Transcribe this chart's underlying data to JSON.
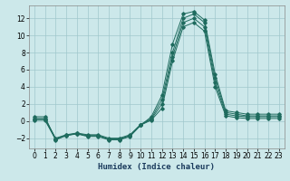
{
  "xlabel": "Humidex (Indice chaleur)",
  "ylabel": "",
  "xlim": [
    -0.5,
    23.5
  ],
  "ylim": [
    -3.2,
    13.5
  ],
  "yticks": [
    -2,
    0,
    2,
    4,
    6,
    8,
    10,
    12
  ],
  "xticks": [
    0,
    1,
    2,
    3,
    4,
    5,
    6,
    7,
    8,
    9,
    10,
    11,
    12,
    13,
    14,
    15,
    16,
    17,
    18,
    19,
    20,
    21,
    22,
    23
  ],
  "background_color": "#cce8ea",
  "grid_color": "#a0c8cc",
  "line_color": "#1e6b5e",
  "series": [
    {
      "x": [
        0,
        1,
        2,
        3,
        4,
        5,
        6,
        7,
        8,
        9,
        10,
        11,
        12,
        13,
        14,
        15,
        16,
        17,
        18,
        19,
        20,
        21,
        22,
        23
      ],
      "y": [
        0.5,
        0.5,
        -2.2,
        -1.7,
        -1.5,
        -1.8,
        -1.8,
        -2.2,
        -2.2,
        -1.8,
        -0.5,
        0.5,
        3.0,
        9.0,
        12.5,
        12.8,
        11.8,
        5.5,
        1.2,
        1.0,
        0.8,
        0.8,
        0.8,
        0.8
      ]
    },
    {
      "x": [
        0,
        1,
        2,
        3,
        4,
        5,
        6,
        7,
        8,
        9,
        10,
        11,
        12,
        13,
        14,
        15,
        16,
        17,
        18,
        19,
        20,
        21,
        22,
        23
      ],
      "y": [
        0.3,
        0.3,
        -2.0,
        -1.6,
        -1.4,
        -1.6,
        -1.6,
        -2.0,
        -2.0,
        -1.6,
        -0.4,
        0.3,
        2.5,
        8.0,
        12.0,
        12.5,
        11.5,
        5.0,
        1.0,
        0.8,
        0.6,
        0.6,
        0.6,
        0.6
      ]
    },
    {
      "x": [
        0,
        1,
        2,
        3,
        4,
        5,
        6,
        7,
        8,
        9,
        10,
        11,
        12,
        13,
        14,
        15,
        16,
        17,
        18,
        19,
        20,
        21,
        22,
        23
      ],
      "y": [
        0.2,
        0.2,
        -2.1,
        -1.65,
        -1.45,
        -1.7,
        -1.7,
        -2.1,
        -2.1,
        -1.7,
        -0.45,
        0.2,
        2.0,
        7.5,
        11.5,
        12.0,
        11.0,
        4.5,
        0.8,
        0.6,
        0.5,
        0.5,
        0.5,
        0.5
      ]
    },
    {
      "x": [
        0,
        1,
        2,
        3,
        4,
        5,
        6,
        7,
        8,
        9,
        10,
        11,
        12,
        13,
        14,
        15,
        16,
        17,
        18,
        19,
        20,
        21,
        22,
        23
      ],
      "y": [
        0.1,
        0.1,
        -2.15,
        -1.68,
        -1.48,
        -1.72,
        -1.72,
        -2.15,
        -2.15,
        -1.72,
        -0.47,
        0.1,
        1.5,
        7.0,
        11.0,
        11.5,
        10.5,
        4.0,
        0.6,
        0.4,
        0.3,
        0.3,
        0.3,
        0.3
      ]
    }
  ]
}
